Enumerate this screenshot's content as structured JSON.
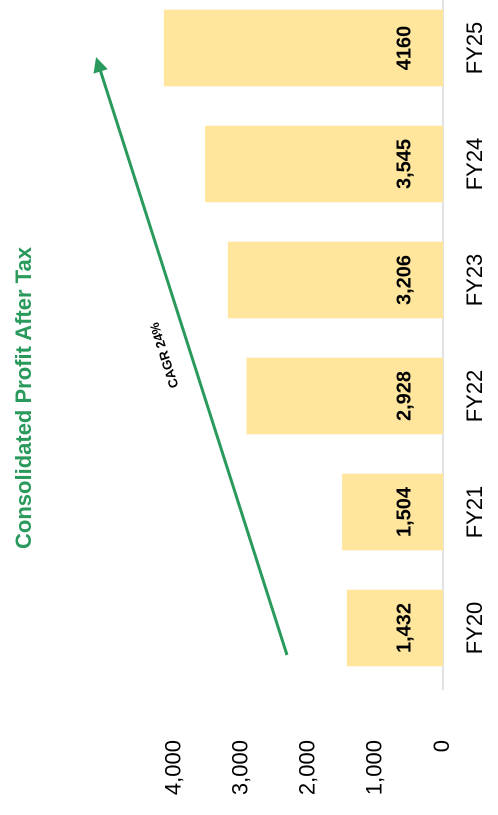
{
  "chart_data": {
    "type": "bar",
    "title": "Consolidated Profit After Tax",
    "categories": [
      "FY20",
      "FY21",
      "FY22",
      "FY23",
      "FY24",
      "FY25"
    ],
    "values": [
      1432,
      1504,
      2928,
      3206,
      3545,
      4160
    ],
    "value_labels": [
      "1,432",
      "1,504",
      "2,928",
      "3,206",
      "3,545",
      "4160"
    ],
    "color": "#ffe69c",
    "ylim": [
      0,
      4500
    ],
    "yticks": [
      0,
      {
        "value": 1000,
        "label": "1,000"
      },
      {
        "value": 2000,
        "label": "2,000"
      },
      {
        "value": 3000,
        "label": "3,000"
      },
      {
        "value": 4000,
        "label": "4,000"
      }
    ],
    "annotation": "CAGR 24%",
    "annotation_color": "#2a9a5c"
  }
}
